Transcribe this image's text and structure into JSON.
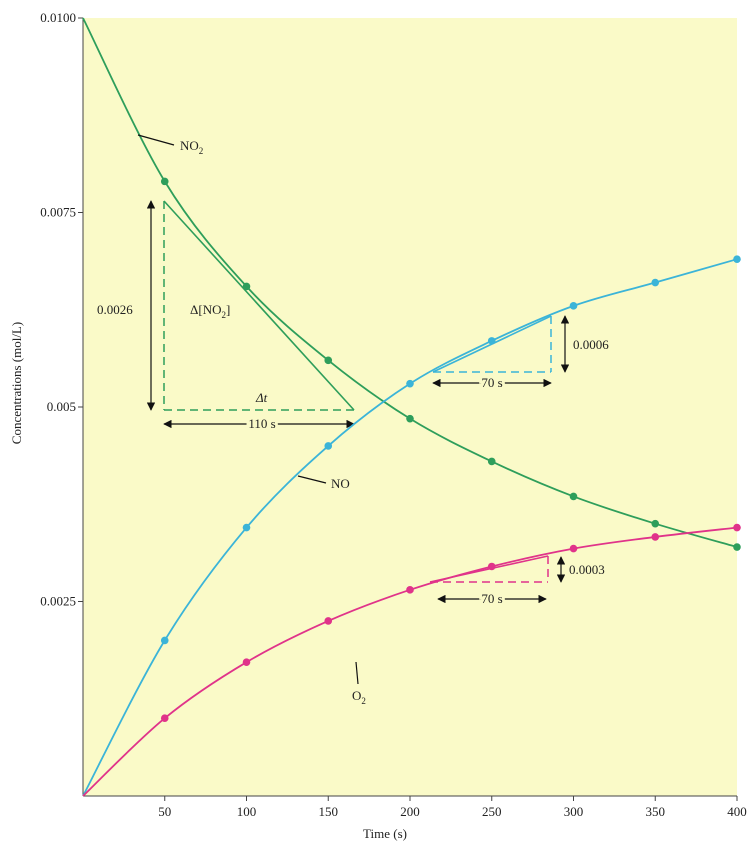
{
  "chart_data": {
    "type": "line",
    "xlabel": "Time (s)",
    "ylabel": "Concentrations (mol/L)",
    "xlim": [
      0,
      400
    ],
    "ylim": [
      0,
      0.01
    ],
    "x_ticks": [
      "50",
      "100",
      "150",
      "200",
      "250",
      "300",
      "350",
      "400"
    ],
    "y_ticks": [
      "0.0025",
      "0.005",
      "0.0075",
      "0.0100"
    ],
    "grid": false,
    "background": "#fafac8",
    "x": [
      0,
      50,
      100,
      150,
      200,
      250,
      300,
      350,
      400
    ],
    "series": [
      {
        "name": "NO2",
        "label_main": "NO",
        "label_sub": "2",
        "color": "#2e9e5b",
        "values": [
          0.01,
          0.0079,
          0.00655,
          0.0056,
          0.00485,
          0.0043,
          0.00385,
          0.0035,
          0.0032
        ]
      },
      {
        "name": "NO",
        "label_main": "NO",
        "label_sub": "",
        "color": "#3bb4d8",
        "values": [
          0,
          0.002,
          0.00345,
          0.0045,
          0.0053,
          0.00585,
          0.0063,
          0.0066,
          0.0069
        ]
      },
      {
        "name": "O2",
        "label_main": "O",
        "label_sub": "2",
        "color": "#e0338a",
        "values": [
          0,
          0.001,
          0.00172,
          0.00225,
          0.00265,
          0.00295,
          0.00318,
          0.00333,
          0.00345
        ]
      }
    ],
    "annotations": {
      "no2_delta_conc": "0.0026",
      "no2_delta_label_main": "Δ[NO",
      "no2_delta_label_sub": "2",
      "no2_delta_label_end": "]",
      "no2_delta_t": "Δt",
      "no2_time_span": "110 s",
      "no_delta_conc": "0.0006",
      "no_time_span": "70 s",
      "o2_delta_conc": "0.0003",
      "o2_time_span": "70 s"
    }
  }
}
